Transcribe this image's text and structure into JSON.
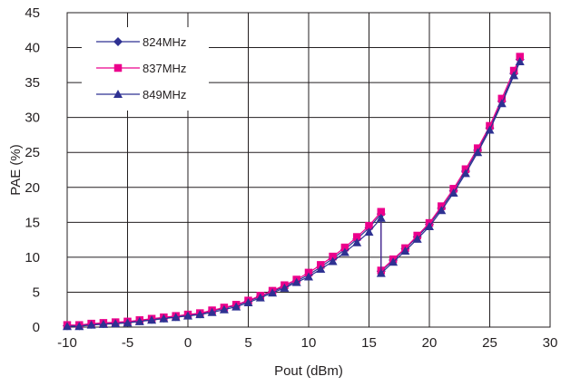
{
  "chart_data": {
    "type": "line",
    "xlabel": "Pout (dBm)",
    "ylabel": "PAE (%)",
    "xlim": [
      -10,
      30
    ],
    "ylim": [
      0,
      45
    ],
    "xticks": [
      "-10",
      "-5",
      "0",
      "5",
      "10",
      "15",
      "20",
      "25",
      "30"
    ],
    "yticks": [
      "0",
      "5",
      "10",
      "15",
      "20",
      "25",
      "30",
      "35",
      "40",
      "45"
    ],
    "grid": true,
    "legend_position": "top-left",
    "series": [
      {
        "name": "824MHz",
        "color": "#2e3192",
        "marker": "diamond",
        "x": [
          -10,
          -9,
          -8,
          -7,
          -6,
          -5,
          -4,
          -3,
          -2,
          -1,
          0,
          1,
          2,
          3,
          4,
          5,
          6,
          7,
          8,
          9,
          10,
          11,
          12,
          13,
          14,
          15,
          16,
          16,
          17,
          18,
          19,
          20,
          21,
          22,
          23,
          24,
          25,
          26,
          27,
          27.5
        ],
        "y": [
          0.2,
          0.2,
          0.4,
          0.5,
          0.6,
          0.7,
          0.9,
          1.1,
          1.3,
          1.5,
          1.7,
          1.9,
          2.3,
          2.7,
          3.1,
          3.7,
          4.4,
          5.1,
          5.8,
          6.6,
          7.5,
          8.6,
          9.8,
          11.1,
          12.6,
          14.2,
          16.2,
          8.0,
          9.6,
          11.2,
          12.9,
          14.7,
          17.0,
          19.5,
          22.3,
          25.3,
          28.5,
          32.3,
          36.3,
          38.3
        ]
      },
      {
        "name": "837MHz",
        "color": "#ec008c",
        "marker": "square",
        "x": [
          -10,
          -9,
          -8,
          -7,
          -6,
          -5,
          -4,
          -3,
          -2,
          -1,
          0,
          1,
          2,
          3,
          4,
          5,
          6,
          7,
          8,
          9,
          10,
          11,
          12,
          13,
          14,
          15,
          16,
          16,
          17,
          18,
          19,
          20,
          21,
          22,
          23,
          24,
          25,
          26,
          27,
          27.5
        ],
        "y": [
          0.3,
          0.3,
          0.5,
          0.6,
          0.7,
          0.8,
          1.0,
          1.2,
          1.4,
          1.6,
          1.8,
          2.0,
          2.4,
          2.8,
          3.2,
          3.8,
          4.5,
          5.2,
          6.0,
          6.8,
          7.8,
          8.9,
          10.1,
          11.4,
          12.9,
          14.5,
          16.5,
          8.1,
          9.7,
          11.3,
          13.1,
          14.9,
          17.3,
          19.8,
          22.6,
          25.6,
          28.8,
          32.7,
          36.7,
          38.7
        ]
      },
      {
        "name": "849MHz",
        "color": "#2e3192",
        "marker": "triangle",
        "x": [
          -10,
          -9,
          -8,
          -7,
          -6,
          -5,
          -4,
          -3,
          -2,
          -1,
          0,
          1,
          2,
          3,
          4,
          5,
          6,
          7,
          8,
          9,
          10,
          11,
          12,
          13,
          14,
          15,
          16,
          16,
          17,
          18,
          19,
          20,
          21,
          22,
          23,
          24,
          25,
          26,
          27,
          27.5
        ],
        "y": [
          0.1,
          0.1,
          0.3,
          0.4,
          0.5,
          0.6,
          0.8,
          1.0,
          1.2,
          1.4,
          1.6,
          1.8,
          2.1,
          2.5,
          2.9,
          3.5,
          4.2,
          4.9,
          5.6,
          6.4,
          7.2,
          8.3,
          9.4,
          10.7,
          12.1,
          13.6,
          15.6,
          7.7,
          9.3,
          10.9,
          12.6,
          14.4,
          16.7,
          19.2,
          22.0,
          25.0,
          28.2,
          32.0,
          36.0,
          38.0
        ]
      }
    ]
  }
}
